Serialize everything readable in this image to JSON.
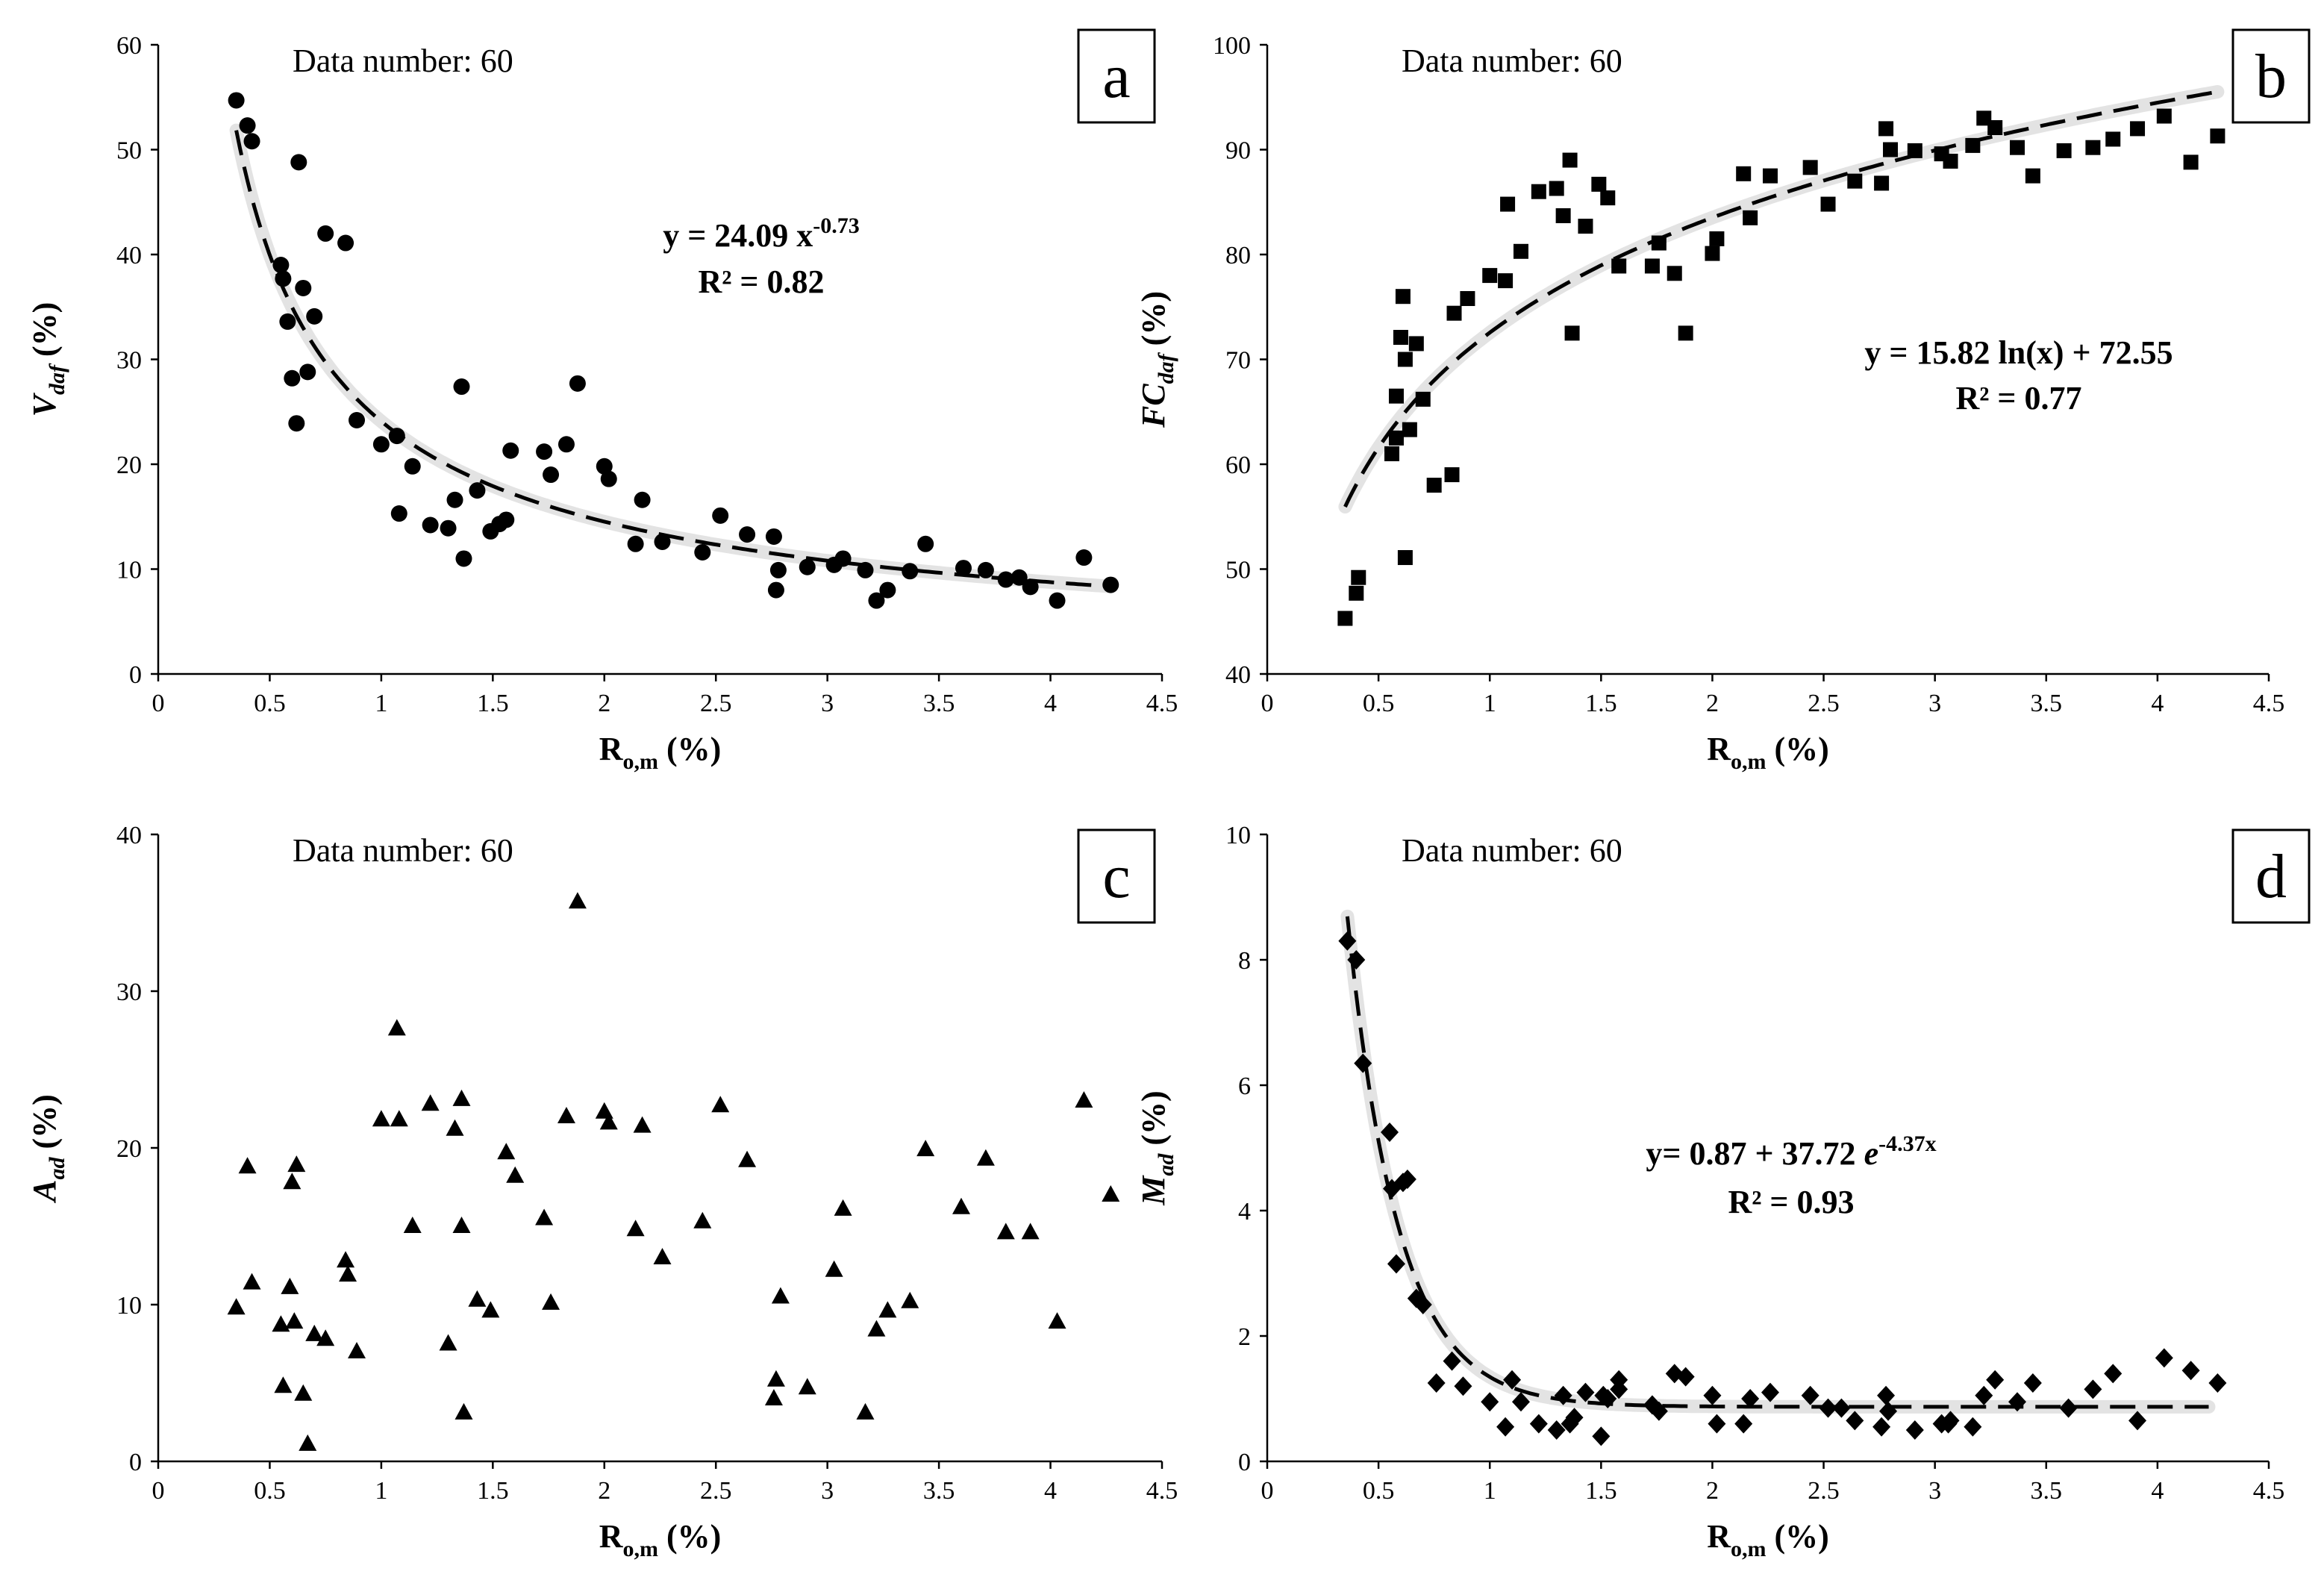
{
  "chart_data": [
    {
      "id": "a",
      "type": "scatter",
      "marker": "circle",
      "panel_label": "a",
      "ylabel_main": "V",
      "ylabel_sub": "daf",
      "ylabel_unit": " (%)",
      "xlabel_main": "R",
      "xlabel_sub": "o,m",
      "xlabel_unit": " (%)",
      "xlim": [
        0,
        4.5
      ],
      "ylim": [
        0,
        60
      ],
      "xticks": [
        "0",
        "0.5",
        "1",
        "1.5",
        "2",
        "2.5",
        "3",
        "3.5",
        "4",
        "4.5"
      ],
      "yticks": [
        "0",
        "10",
        "20",
        "30",
        "40",
        "50",
        "60"
      ],
      "note": "Data number: 60",
      "equation": {
        "y": "y = ",
        "coef": "24.09 x",
        "sup": "-0.73",
        "tail": ""
      },
      "r2": "R² = 0.82",
      "fit": {
        "kind": "power",
        "a": 24.09,
        "b": -0.73,
        "xmin": 0.35,
        "xmax": 4.27
      },
      "x": [
        0.35,
        0.4,
        0.42,
        0.55,
        0.56,
        0.58,
        0.6,
        0.62,
        0.63,
        0.65,
        0.67,
        0.7,
        0.75,
        0.84,
        0.89,
        1.0,
        1.07,
        1.08,
        1.14,
        1.22,
        1.3,
        1.33,
        1.36,
        1.37,
        1.43,
        1.49,
        1.53,
        1.56,
        1.58,
        1.73,
        1.76,
        1.83,
        1.88,
        2.0,
        2.02,
        2.14,
        2.17,
        2.26,
        2.44,
        2.52,
        2.64,
        2.76,
        2.77,
        2.78,
        2.91,
        3.03,
        3.07,
        3.17,
        3.22,
        3.27,
        3.37,
        3.44,
        3.61,
        3.71,
        3.8,
        3.91,
        4.03,
        4.15,
        4.27,
        3.86
      ],
      "y": [
        54.7,
        52.3,
        50.8,
        39.0,
        37.7,
        33.6,
        28.2,
        23.9,
        48.8,
        36.8,
        28.8,
        34.1,
        42.0,
        41.1,
        24.2,
        21.9,
        22.7,
        15.3,
        19.8,
        14.2,
        13.9,
        16.6,
        27.4,
        11.0,
        17.5,
        13.6,
        14.3,
        14.7,
        21.3,
        21.2,
        19.0,
        21.9,
        27.7,
        19.8,
        18.6,
        12.4,
        16.6,
        12.6,
        11.6,
        15.1,
        13.3,
        13.1,
        8.0,
        9.9,
        10.2,
        10.4,
        11.0,
        9.9,
        7.0,
        8.0,
        9.8,
        12.4,
        10.1,
        9.9,
        9.0,
        8.3,
        7.0,
        11.1,
        8.5,
        9.2
      ]
    },
    {
      "id": "b",
      "type": "scatter",
      "marker": "square",
      "panel_label": "b",
      "ylabel_main": "FC",
      "ylabel_sub": "daf",
      "ylabel_unit": " (%)",
      "xlabel_main": "R",
      "xlabel_sub": "o,m",
      "xlabel_unit": " (%)",
      "xlim": [
        0,
        4.5
      ],
      "ylim": [
        40,
        100
      ],
      "xticks": [
        "0",
        "0.5",
        "1",
        "1.5",
        "2",
        "2.5",
        "3",
        "3.5",
        "4",
        "4.5"
      ],
      "yticks": [
        "40",
        "50",
        "60",
        "70",
        "80",
        "90",
        "100"
      ],
      "note": "Data number: 60",
      "equation": {
        "y": "y = ",
        "coef": "15.82 ln(x) + 72.55",
        "sup": "",
        "tail": ""
      },
      "r2": "R² = 0.77",
      "fit": {
        "kind": "log",
        "a": 15.82,
        "b": 72.55,
        "xmin": 0.35,
        "xmax": 4.27
      },
      "x": [
        0.35,
        0.4,
        0.41,
        0.56,
        0.58,
        0.6,
        0.61,
        0.62,
        0.64,
        0.67,
        0.7,
        0.75,
        0.83,
        0.84,
        0.9,
        1.0,
        1.07,
        1.08,
        1.14,
        1.22,
        1.3,
        1.33,
        1.36,
        1.37,
        1.43,
        1.49,
        1.53,
        1.58,
        1.73,
        1.76,
        1.83,
        1.88,
        2.0,
        2.02,
        2.14,
        2.17,
        2.26,
        2.44,
        2.52,
        2.64,
        2.76,
        2.78,
        2.8,
        2.91,
        3.03,
        3.07,
        3.17,
        3.22,
        3.27,
        3.37,
        3.44,
        3.58,
        3.71,
        3.8,
        3.91,
        4.03,
        4.15,
        4.27,
        0.58,
        0.62
      ],
      "y": [
        45.3,
        47.7,
        49.2,
        61.0,
        66.5,
        72.1,
        76.0,
        51.1,
        63.3,
        71.5,
        66.2,
        58.0,
        59.0,
        74.4,
        75.8,
        78.0,
        77.5,
        84.8,
        80.3,
        86.0,
        86.3,
        83.7,
        89.0,
        72.5,
        82.7,
        86.7,
        85.4,
        78.9,
        78.9,
        81.1,
        78.2,
        72.5,
        80.1,
        81.5,
        87.7,
        83.5,
        87.5,
        88.3,
        84.8,
        87.0,
        86.8,
        92.0,
        90.0,
        89.9,
        89.6,
        88.9,
        90.4,
        93.0,
        92.1,
        90.2,
        87.5,
        89.9,
        90.2,
        91.0,
        92.0,
        93.2,
        88.8,
        91.3,
        62.5,
        70.0
      ]
    },
    {
      "id": "c",
      "type": "scatter",
      "marker": "triangle",
      "panel_label": "c",
      "ylabel_main": "A",
      "ylabel_sub": "ad",
      "ylabel_unit": " (%)",
      "xlabel_main": "R",
      "xlabel_sub": "o,m",
      "xlabel_unit": " (%)",
      "xlim": [
        0,
        4.5
      ],
      "ylim": [
        0,
        40
      ],
      "xticks": [
        "0",
        "0.5",
        "1",
        "1.5",
        "2",
        "2.5",
        "3",
        "3.5",
        "4",
        "4.5"
      ],
      "yticks": [
        "0",
        "10",
        "20",
        "30",
        "40"
      ],
      "note": "Data number: 60",
      "x": [
        0.35,
        0.4,
        0.42,
        0.55,
        0.56,
        0.59,
        0.6,
        0.61,
        0.62,
        0.65,
        0.67,
        0.7,
        0.75,
        0.84,
        0.85,
        0.89,
        1.0,
        1.07,
        1.08,
        1.14,
        1.22,
        1.3,
        1.33,
        1.36,
        1.37,
        1.43,
        1.49,
        1.56,
        1.6,
        1.73,
        1.76,
        1.83,
        1.88,
        2.0,
        2.02,
        2.14,
        2.17,
        2.26,
        2.44,
        2.52,
        2.64,
        2.76,
        2.77,
        2.79,
        2.91,
        3.03,
        3.07,
        3.17,
        3.22,
        3.27,
        3.37,
        3.44,
        3.6,
        3.71,
        3.8,
        3.91,
        4.03,
        4.15,
        4.27,
        1.36
      ],
      "y": [
        9.8,
        18.8,
        11.4,
        8.7,
        4.8,
        11.1,
        17.8,
        8.9,
        18.9,
        4.3,
        1.1,
        8.1,
        7.8,
        12.8,
        11.9,
        7.0,
        21.8,
        27.6,
        21.8,
        15.0,
        22.8,
        7.5,
        21.2,
        23.1,
        3.1,
        10.3,
        9.6,
        19.7,
        18.2,
        15.5,
        10.1,
        22.0,
        35.7,
        22.3,
        21.6,
        14.8,
        21.4,
        13.0,
        15.3,
        22.7,
        19.2,
        4.0,
        5.2,
        10.5,
        4.7,
        12.2,
        16.1,
        3.1,
        8.4,
        9.6,
        10.2,
        19.9,
        16.2,
        19.3,
        14.6,
        14.6,
        8.9,
        23.0,
        17.0,
        15.0
      ]
    },
    {
      "id": "d",
      "type": "scatter",
      "marker": "diamond",
      "panel_label": "d",
      "ylabel_main": "M",
      "ylabel_sub": "ad",
      "ylabel_unit": " (%)",
      "xlabel_main": "R",
      "xlabel_sub": "o,m",
      "xlabel_unit": " (%)",
      "xlim": [
        0,
        4.5
      ],
      "ylim": [
        0,
        10
      ],
      "xticks": [
        "0",
        "0.5",
        "1",
        "1.5",
        "2",
        "2.5",
        "3",
        "3.5",
        "4",
        "4.5"
      ],
      "yticks": [
        "0",
        "2",
        "4",
        "6",
        "8",
        "10"
      ],
      "note": "Data number: 60",
      "equation": {
        "y": "y= ",
        "coef": "0.87 + 37.72 ",
        "e": "e",
        "sup": "-4.37x",
        "tail": ""
      },
      "r2": "R² = 0.93",
      "fit": {
        "kind": "exp",
        "c": 0.87,
        "a": 37.72,
        "b": -4.37,
        "xmin": 0.36,
        "xmax": 4.23
      },
      "x": [
        0.36,
        0.4,
        0.43,
        0.55,
        0.56,
        0.58,
        0.61,
        0.63,
        0.67,
        0.7,
        0.76,
        0.83,
        0.88,
        1.0,
        1.07,
        1.14,
        1.22,
        1.3,
        1.33,
        1.36,
        1.43,
        1.5,
        1.51,
        1.53,
        1.58,
        1.73,
        1.76,
        1.83,
        1.88,
        2.0,
        2.02,
        2.14,
        2.17,
        2.26,
        2.44,
        2.52,
        2.64,
        2.76,
        2.78,
        2.79,
        2.91,
        3.03,
        3.07,
        3.17,
        3.22,
        3.27,
        3.37,
        3.44,
        3.6,
        3.71,
        3.8,
        3.91,
        4.03,
        4.15,
        4.27,
        1.38,
        1.1,
        2.58,
        3.06,
        1.58
      ],
      "y": [
        8.3,
        8.0,
        6.35,
        5.25,
        4.35,
        3.15,
        4.45,
        4.5,
        2.6,
        2.5,
        1.25,
        1.6,
        1.2,
        0.95,
        0.55,
        0.95,
        0.6,
        0.5,
        1.05,
        0.6,
        1.1,
        0.4,
        1.05,
        1.0,
        1.3,
        0.9,
        0.8,
        1.4,
        1.35,
        1.05,
        0.6,
        0.6,
        1.0,
        1.1,
        1.05,
        0.85,
        0.65,
        0.55,
        1.05,
        0.8,
        0.5,
        0.6,
        0.65,
        0.55,
        1.05,
        1.3,
        0.95,
        1.25,
        0.85,
        1.15,
        1.4,
        0.65,
        1.65,
        1.45,
        1.25,
        0.7,
        1.3,
        0.85,
        0.6,
        1.15
      ]
    }
  ]
}
